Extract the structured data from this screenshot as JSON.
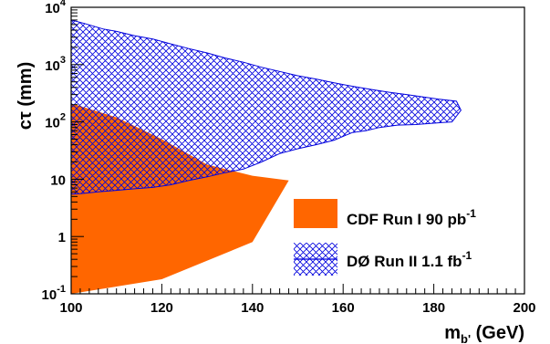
{
  "chart_data": {
    "type": "area",
    "xlabel_main": "m",
    "xlabel_sub": "b'",
    "xlabel_unit": " (GeV)",
    "ylabel_main": "cτ",
    "ylabel_unit": " (mm)",
    "xlim": [
      100,
      200
    ],
    "ylim": [
      0.1,
      10000
    ],
    "yscale": "log",
    "x_ticks": [
      {
        "value": 100,
        "label": "100"
      },
      {
        "value": 120,
        "label": "120"
      },
      {
        "value": 140,
        "label": "140"
      },
      {
        "value": 160,
        "label": "160"
      },
      {
        "value": 180,
        "label": "180"
      },
      {
        "value": 200,
        "label": "200"
      }
    ],
    "y_ticks": [
      {
        "value": 0.1,
        "base": "10",
        "exp": "-1"
      },
      {
        "value": 1,
        "base": "1",
        "exp": ""
      },
      {
        "value": 10,
        "base": "10",
        "exp": ""
      },
      {
        "value": 100,
        "base": "10",
        "exp": "2"
      },
      {
        "value": 1000,
        "base": "10",
        "exp": "3"
      },
      {
        "value": 10000,
        "base": "10",
        "exp": "4"
      }
    ],
    "legend_position": "bottom-right",
    "series": [
      {
        "name": "CDF Run I 90 pb",
        "name_sup": "-1",
        "style": "solid",
        "color": "#ff6600",
        "polygon": [
          [
            100,
            0.1
          ],
          [
            120,
            0.18
          ],
          [
            140,
            0.8
          ],
          [
            148,
            9.5
          ],
          [
            140,
            11.5
          ],
          [
            130,
            18
          ],
          [
            120,
            50
          ],
          [
            110,
            120
          ],
          [
            101,
            200
          ],
          [
            100,
            200
          ]
        ]
      },
      {
        "name": "DØ Run II 1.1 fb",
        "name_sup": "-1",
        "style": "hatched",
        "color": "#0000dd",
        "polygon": [
          [
            100,
            6000
          ],
          [
            103,
            5200
          ],
          [
            107,
            4200
          ],
          [
            110,
            3800
          ],
          [
            114,
            3200
          ],
          [
            118,
            2800
          ],
          [
            122,
            2300
          ],
          [
            126,
            1900
          ],
          [
            130,
            1600
          ],
          [
            134,
            1300
          ],
          [
            138,
            1100
          ],
          [
            142,
            900
          ],
          [
            146,
            760
          ],
          [
            150,
            640
          ],
          [
            154,
            560
          ],
          [
            158,
            480
          ],
          [
            162,
            420
          ],
          [
            166,
            370
          ],
          [
            170,
            330
          ],
          [
            174,
            300
          ],
          [
            178,
            270
          ],
          [
            181,
            250
          ],
          [
            183,
            240
          ],
          [
            185,
            230
          ],
          [
            186,
            160
          ],
          [
            184,
            100
          ],
          [
            182,
            98
          ],
          [
            180,
            95
          ],
          [
            176,
            90
          ],
          [
            172,
            88
          ],
          [
            168,
            80
          ],
          [
            165,
            70
          ],
          [
            162,
            65
          ],
          [
            158,
            48
          ],
          [
            154,
            40
          ],
          [
            150,
            34
          ],
          [
            146,
            28
          ],
          [
            142,
            20
          ],
          [
            138,
            15
          ],
          [
            134,
            13
          ],
          [
            130,
            11
          ],
          [
            126,
            9.5
          ],
          [
            122,
            8
          ],
          [
            118,
            7.2
          ],
          [
            114,
            6.8
          ],
          [
            110,
            6.4
          ],
          [
            106,
            6
          ],
          [
            102,
            5.6
          ],
          [
            100,
            5.5
          ]
        ]
      }
    ]
  }
}
